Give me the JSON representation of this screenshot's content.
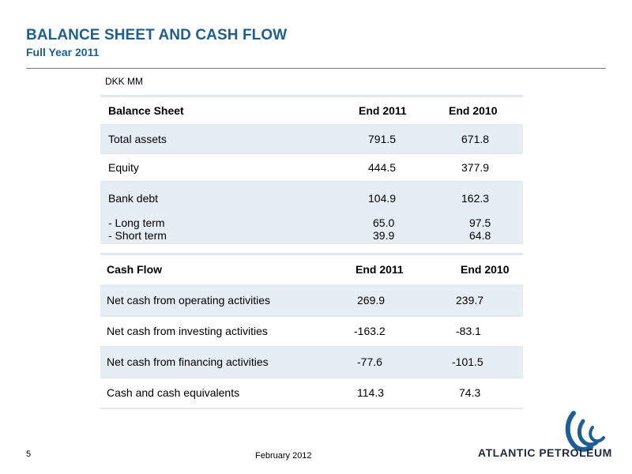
{
  "header": {
    "title": "BALANCE SHEET AND CASH FLOW",
    "subtitle": "Full Year 2011"
  },
  "unit": "DKK MM",
  "balance_sheet": {
    "headers": [
      "Balance Sheet",
      "End 2011",
      "End 2010"
    ],
    "rows": [
      {
        "label": "Total assets",
        "v2011": "791.5",
        "v2010": "671.8"
      },
      {
        "label": "Equity",
        "v2011": "444.5",
        "v2010": "377.9"
      },
      {
        "label": "Bank debt",
        "v2011": "104.9",
        "v2010": "162.3"
      }
    ],
    "sub_rows": [
      {
        "label": "- Long term",
        "v2011": "65.0",
        "v2010": "97.5"
      },
      {
        "label": "- Short term",
        "v2011": "39.9",
        "v2010": "64.8"
      }
    ]
  },
  "cash_flow": {
    "headers": [
      "Cash Flow",
      "End  2011",
      "End 2010"
    ],
    "rows": [
      {
        "label": "Net cash from operating activities",
        "v2011": "269.9",
        "v2010": "239.7"
      },
      {
        "label": "Net cash from investing activities",
        "v2011": "-163.2",
        "v2010": "-83.1"
      },
      {
        "label": "Net cash from financing activities",
        "v2011": "-77.6",
        "v2010": "-101.5"
      },
      {
        "label": "Cash and cash equivalents",
        "v2011": "114.3",
        "v2010": "74.3"
      }
    ]
  },
  "footer": {
    "page_number": "5",
    "date": "February 2012",
    "company_name": "ATLANTIC PETROLEUM"
  },
  "colors": {
    "title": "#1f5f8e",
    "row_shade": "#e6edf3",
    "logo": "#1d5f95"
  },
  "icons": {
    "logo": "atlantic-petroleum-wave-logo-icon"
  }
}
